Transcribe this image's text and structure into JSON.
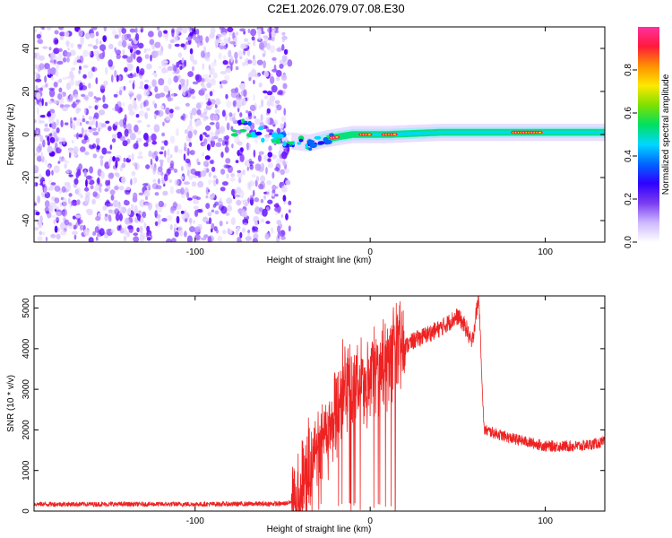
{
  "title": "C2E1.2026.079.07.08.E30",
  "chart_data": [
    {
      "type": "heatmap",
      "name": "spectrogram",
      "xlabel": "Height of straight line (km)",
      "ylabel": "Frequency (Hz)",
      "xlim": [
        -192,
        134
      ],
      "ylim": [
        -50,
        50
      ],
      "x_ticks": [
        -100,
        0,
        100
      ],
      "y_ticks": [
        -40,
        -20,
        0,
        20,
        40
      ],
      "colorbar": {
        "label": "Normalized spectral amplitude",
        "range": [
          0,
          1
        ],
        "ticks": [
          "0.0",
          "0.2",
          "0.4",
          "0.6",
          "0.8"
        ],
        "colors": [
          "#ffffff",
          "#cdb8ff",
          "#7a3cf0",
          "#2f00ff",
          "#0066ff",
          "#00d8ff",
          "#00e060",
          "#7fe000",
          "#ffe800",
          "#ff9000",
          "#ff1a3a",
          "#ff30a0"
        ]
      },
      "noise_region_x": [
        -192,
        -50
      ],
      "signal_track": {
        "description_points": [
          {
            "x": -75,
            "f": 4
          },
          {
            "x": -60,
            "f": 0
          },
          {
            "x": -45,
            "f": -3
          },
          {
            "x": -35,
            "f": -4
          },
          {
            "x": -25,
            "f": -2
          },
          {
            "x": -10,
            "f": 0
          },
          {
            "x": 10,
            "f": 0
          },
          {
            "x": 40,
            "f": 1
          },
          {
            "x": 80,
            "f": 1
          },
          {
            "x": 100,
            "f": 1
          },
          {
            "x": 134,
            "f": 1
          }
        ],
        "hot_segments_x": [
          [
            -22,
            -18
          ],
          [
            -5,
            0
          ],
          [
            8,
            14
          ],
          [
            82,
            98
          ]
        ]
      }
    },
    {
      "type": "line",
      "name": "snr",
      "xlabel": "Height of straight line (km)",
      "ylabel": "SNR (10 * v/v)",
      "xlim": [
        -192,
        134
      ],
      "ylim": [
        0,
        5300
      ],
      "x_ticks": [
        -100,
        0,
        100
      ],
      "y_ticks": [
        0,
        1000,
        2000,
        3000,
        4000,
        5000
      ],
      "color": "#ee2222",
      "profile": [
        {
          "x": -192,
          "y": 170
        },
        {
          "x": -100,
          "y": 170
        },
        {
          "x": -50,
          "y": 180
        },
        {
          "x": -42,
          "y": 250
        },
        {
          "x": -36,
          "y": 800
        },
        {
          "x": -30,
          "y": 1500
        },
        {
          "x": -22,
          "y": 2200
        },
        {
          "x": -15,
          "y": 2800
        },
        {
          "x": -5,
          "y": 3100
        },
        {
          "x": 5,
          "y": 3500
        },
        {
          "x": 15,
          "y": 3900
        },
        {
          "x": 25,
          "y": 4200
        },
        {
          "x": 40,
          "y": 4500
        },
        {
          "x": 50,
          "y": 4800
        },
        {
          "x": 55,
          "y": 4500
        },
        {
          "x": 58,
          "y": 4100
        },
        {
          "x": 62,
          "y": 5300
        },
        {
          "x": 65,
          "y": 2000
        },
        {
          "x": 80,
          "y": 1800
        },
        {
          "x": 100,
          "y": 1600
        },
        {
          "x": 120,
          "y": 1600
        },
        {
          "x": 134,
          "y": 1700
        }
      ],
      "noise_amplitude_note": "high-frequency jitter"
    }
  ]
}
